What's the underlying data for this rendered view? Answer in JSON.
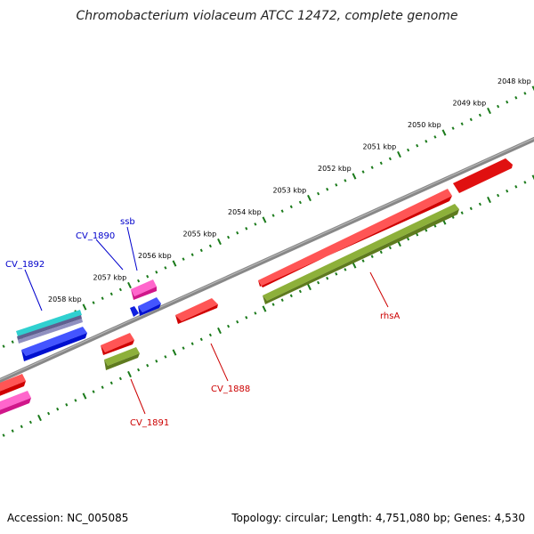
{
  "title": "Chromobacterium violaceum ATCC 12472, complete genome",
  "footer": {
    "accession": "Accession: NC_005085",
    "stats": "Topology: circular; Length: 4,751,080 bp; Genes: 4,530"
  },
  "colors": {
    "backbone": "#808080",
    "tick": "#1a7a1a",
    "label_blue": "#0000cc",
    "label_red": "#cc0000",
    "red": "#ee1111",
    "olive": "#6b8e23",
    "magenta": "#e0209a",
    "blue": "#1020e0",
    "cyan": "#20c0c0",
    "slate": "#505080"
  },
  "scale": {
    "labels": [
      "2048 kbp",
      "2049 kbp",
      "2050 kbp",
      "2051 kbp",
      "2052 kbp",
      "2053 kbp",
      "2054 kbp",
      "2055 kbp",
      "2056 kbp",
      "2057 kbp",
      "2058 kbp"
    ]
  },
  "gene_labels": [
    {
      "name": "CV_1892",
      "color": "blue"
    },
    {
      "name": "CV_1890",
      "color": "blue"
    },
    {
      "name": "ssb",
      "color": "blue"
    },
    {
      "name": "rhsA",
      "color": "red"
    },
    {
      "name": "CV_1888",
      "color": "red"
    },
    {
      "name": "CV_1891",
      "color": "red"
    }
  ]
}
